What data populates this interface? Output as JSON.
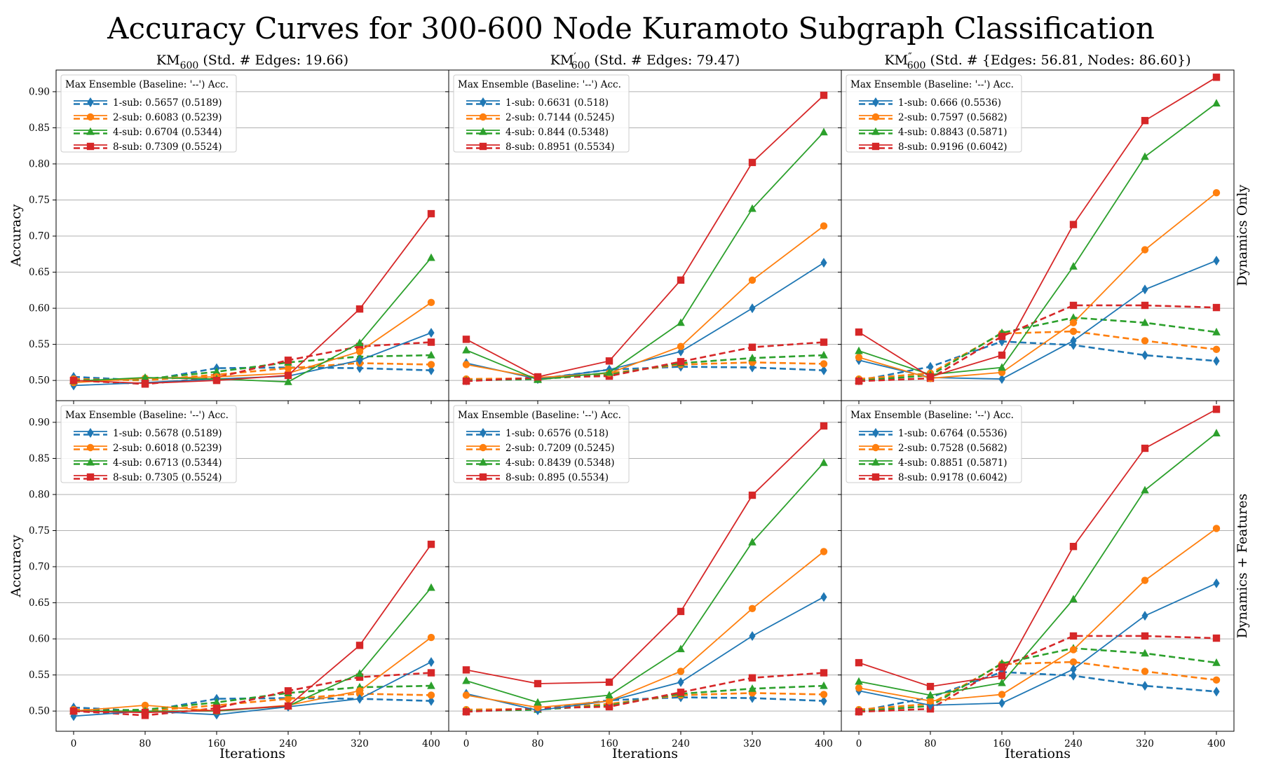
{
  "title": "Accuracy Curves for 300-600 Node Kuramoto Subgraph Classification",
  "colors": {
    "1-sub": "#1f77b4",
    "2-sub": "#ff7f0e",
    "4-sub": "#2ca02c",
    "8-sub": "#d62728",
    "grid": "#b0b0b0"
  },
  "markers": {
    "1-sub": "diamond",
    "2-sub": "circle",
    "4-sub": "triangle",
    "8-sub": "square"
  },
  "column_titles": [
    {
      "sub": "600",
      "prime": "",
      "rest": " (Std. # Edges: 19.66)"
    },
    {
      "sub": "600",
      "prime": "′",
      "rest": " (Std. # Edges: 79.47)"
    },
    {
      "sub": "600",
      "prime": "″",
      "rest": " (Std. # {Edges: 56.81, Nodes: 86.60})"
    }
  ],
  "title_prefix": "KM",
  "row_labels": [
    "Dynamics Only",
    "Dynamics + Features"
  ],
  "xlabel": "Iterations",
  "ylabel": "Accuracy",
  "legend_title": "Max Ensemble (Baseline: '--') Acc.",
  "chart_data": {
    "type": "line",
    "x": [
      0,
      80,
      160,
      240,
      320,
      400
    ],
    "xticks": [
      "0",
      "80",
      "160",
      "240",
      "320",
      "400"
    ],
    "ylim": [
      0.472,
      0.93
    ],
    "yticks": [
      "0.50",
      "0.55",
      "0.60",
      "0.65",
      "0.70",
      "0.75",
      "0.80",
      "0.85",
      "0.90"
    ],
    "grid": "horizontal",
    "panels": [
      {
        "row": 0,
        "col": 0,
        "legend": [
          "1-sub: 0.5657 (0.5189)",
          "2-sub: 0.6083 (0.5239)",
          "4-sub: 0.6704 (0.5344)",
          "8-sub: 0.7309 (0.5524)"
        ],
        "series": [
          {
            "name": "1-sub",
            "values": [
              0.493,
              0.497,
              0.502,
              0.506,
              0.528,
              0.566
            ]
          },
          {
            "name": "2-sub",
            "values": [
              0.497,
              0.503,
              0.505,
              0.51,
              0.54,
              0.608
            ]
          },
          {
            "name": "4-sub",
            "values": [
              0.499,
              0.504,
              0.502,
              0.498,
              0.552,
              0.67
            ]
          },
          {
            "name": "8-sub",
            "values": [
              0.5,
              0.496,
              0.5,
              0.507,
              0.599,
              0.731
            ]
          }
        ],
        "baselines": [
          {
            "name": "1-sub",
            "values": [
              0.505,
              0.5,
              0.517,
              0.518,
              0.517,
              0.514
            ]
          },
          {
            "name": "2-sub",
            "values": [
              0.502,
              0.5,
              0.508,
              0.517,
              0.524,
              0.522
            ]
          },
          {
            "name": "4-sub",
            "values": [
              0.5,
              0.502,
              0.512,
              0.525,
              0.533,
              0.535
            ]
          },
          {
            "name": "8-sub",
            "values": [
              0.5,
              0.495,
              0.504,
              0.528,
              0.547,
              0.553
            ]
          }
        ]
      },
      {
        "row": 0,
        "col": 1,
        "legend": [
          "1-sub: 0.6631 (0.518)",
          "2-sub: 0.7144 (0.5245)",
          "4-sub: 0.844 (0.5348)",
          "8-sub: 0.8951 (0.5534)"
        ],
        "series": [
          {
            "name": "1-sub",
            "values": [
              0.524,
              0.502,
              0.515,
              0.54,
              0.6,
              0.663
            ]
          },
          {
            "name": "2-sub",
            "values": [
              0.522,
              0.504,
              0.51,
              0.547,
              0.639,
              0.714
            ]
          },
          {
            "name": "4-sub",
            "values": [
              0.542,
              0.501,
              0.511,
              0.58,
              0.738,
              0.844
            ]
          },
          {
            "name": "8-sub",
            "values": [
              0.557,
              0.505,
              0.527,
              0.639,
              0.802,
              0.895
            ]
          }
        ],
        "baselines": [
          {
            "name": "1-sub",
            "values": [
              0.5,
              0.502,
              0.515,
              0.519,
              0.518,
              0.514
            ]
          },
          {
            "name": "2-sub",
            "values": [
              0.502,
              0.503,
              0.51,
              0.522,
              0.525,
              0.523
            ]
          },
          {
            "name": "4-sub",
            "values": [
              0.5,
              0.502,
              0.508,
              0.524,
              0.531,
              0.535
            ]
          },
          {
            "name": "8-sub",
            "values": [
              0.499,
              0.504,
              0.506,
              0.526,
              0.546,
              0.553
            ]
          }
        ]
      },
      {
        "row": 0,
        "col": 2,
        "legend": [
          "1-sub: 0.666 (0.5536)",
          "2-sub: 0.7597 (0.5682)",
          "4-sub: 0.8843 (0.5871)",
          "8-sub: 0.9196 (0.6042)"
        ],
        "series": [
          {
            "name": "1-sub",
            "values": [
              0.528,
              0.504,
              0.502,
              0.555,
              0.626,
              0.666
            ]
          },
          {
            "name": "2-sub",
            "values": [
              0.532,
              0.503,
              0.511,
              0.58,
              0.681,
              0.76
            ]
          },
          {
            "name": "4-sub",
            "values": [
              0.541,
              0.508,
              0.518,
              0.658,
              0.81,
              0.884
            ]
          },
          {
            "name": "8-sub",
            "values": [
              0.567,
              0.505,
              0.535,
              0.716,
              0.86,
              0.92
            ]
          }
        ],
        "baselines": [
          {
            "name": "1-sub",
            "values": [
              0.5,
              0.519,
              0.554,
              0.549,
              0.535,
              0.527
            ]
          },
          {
            "name": "2-sub",
            "values": [
              0.502,
              0.51,
              0.565,
              0.568,
              0.555,
              0.543
            ]
          },
          {
            "name": "4-sub",
            "values": [
              0.5,
              0.507,
              0.566,
              0.587,
              0.58,
              0.567
            ]
          },
          {
            "name": "8-sub",
            "values": [
              0.499,
              0.503,
              0.561,
              0.604,
              0.604,
              0.601
            ]
          }
        ]
      },
      {
        "row": 1,
        "col": 0,
        "legend": [
          "1-sub: 0.5678 (0.5189)",
          "2-sub: 0.6018 (0.5239)",
          "4-sub: 0.6713 (0.5344)",
          "8-sub: 0.7305 (0.5524)"
        ],
        "series": [
          {
            "name": "1-sub",
            "values": [
              0.493,
              0.5,
              0.495,
              0.506,
              0.517,
              0.568
            ]
          },
          {
            "name": "2-sub",
            "values": [
              0.5,
              0.508,
              0.5,
              0.508,
              0.528,
              0.602
            ]
          },
          {
            "name": "4-sub",
            "values": [
              0.5,
              0.5,
              0.5,
              0.507,
              0.552,
              0.671
            ]
          },
          {
            "name": "8-sub",
            "values": [
              0.5,
              0.498,
              0.501,
              0.507,
              0.591,
              0.731
            ]
          }
        ],
        "baselines": [
          {
            "name": "1-sub",
            "values": [
              0.505,
              0.5,
              0.517,
              0.518,
              0.517,
              0.514
            ]
          },
          {
            "name": "2-sub",
            "values": [
              0.502,
              0.5,
              0.508,
              0.517,
              0.524,
              0.522
            ]
          },
          {
            "name": "4-sub",
            "values": [
              0.5,
              0.502,
              0.512,
              0.525,
              0.533,
              0.535
            ]
          },
          {
            "name": "8-sub",
            "values": [
              0.5,
              0.494,
              0.504,
              0.528,
              0.547,
              0.553
            ]
          }
        ]
      },
      {
        "row": 1,
        "col": 1,
        "legend": [
          "1-sub: 0.6576 (0.518)",
          "2-sub: 0.7209 (0.5245)",
          "4-sub: 0.8439 (0.5348)",
          "8-sub: 0.895 (0.5534)"
        ],
        "series": [
          {
            "name": "1-sub",
            "values": [
              0.524,
              0.501,
              0.514,
              0.54,
              0.604,
              0.658
            ]
          },
          {
            "name": "2-sub",
            "values": [
              0.522,
              0.505,
              0.514,
              0.555,
              0.642,
              0.721
            ]
          },
          {
            "name": "4-sub",
            "values": [
              0.542,
              0.512,
              0.522,
              0.586,
              0.734,
              0.844
            ]
          },
          {
            "name": "8-sub",
            "values": [
              0.557,
              0.538,
              0.54,
              0.638,
              0.799,
              0.895
            ]
          }
        ],
        "baselines": [
          {
            "name": "1-sub",
            "values": [
              0.5,
              0.502,
              0.515,
              0.519,
              0.518,
              0.514
            ]
          },
          {
            "name": "2-sub",
            "values": [
              0.502,
              0.503,
              0.51,
              0.522,
              0.525,
              0.523
            ]
          },
          {
            "name": "4-sub",
            "values": [
              0.5,
              0.502,
              0.508,
              0.524,
              0.531,
              0.535
            ]
          },
          {
            "name": "8-sub",
            "values": [
              0.499,
              0.504,
              0.506,
              0.526,
              0.546,
              0.553
            ]
          }
        ]
      },
      {
        "row": 1,
        "col": 2,
        "legend": [
          "1-sub: 0.6764 (0.5536)",
          "2-sub: 0.7528 (0.5682)",
          "4-sub: 0.8851 (0.5871)",
          "8-sub: 0.9178 (0.6042)"
        ],
        "series": [
          {
            "name": "1-sub",
            "values": [
              0.528,
              0.508,
              0.511,
              0.558,
              0.632,
              0.677
            ]
          },
          {
            "name": "2-sub",
            "values": [
              0.532,
              0.514,
              0.523,
              0.585,
              0.681,
              0.753
            ]
          },
          {
            "name": "4-sub",
            "values": [
              0.541,
              0.522,
              0.539,
              0.655,
              0.806,
              0.885
            ]
          },
          {
            "name": "8-sub",
            "values": [
              0.567,
              0.534,
              0.549,
              0.728,
              0.864,
              0.918
            ]
          }
        ],
        "baselines": [
          {
            "name": "1-sub",
            "values": [
              0.5,
              0.519,
              0.554,
              0.549,
              0.535,
              0.527
            ]
          },
          {
            "name": "2-sub",
            "values": [
              0.502,
              0.51,
              0.565,
              0.568,
              0.555,
              0.543
            ]
          },
          {
            "name": "4-sub",
            "values": [
              0.5,
              0.507,
              0.566,
              0.587,
              0.58,
              0.567
            ]
          },
          {
            "name": "8-sub",
            "values": [
              0.499,
              0.503,
              0.561,
              0.604,
              0.604,
              0.601
            ]
          }
        ]
      }
    ]
  }
}
